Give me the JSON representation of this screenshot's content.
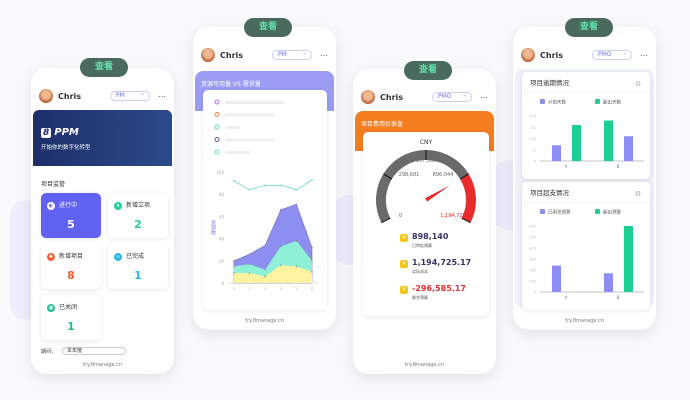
{
  "view_label": "查看",
  "footer": "try.8manage.cn",
  "user": "Chris",
  "colors": {
    "purple": "#6b6ef0",
    "green": "#1ecf95",
    "orange": "#f47d20",
    "red": "#e52b2b",
    "pill": "#4a6a5e"
  },
  "phone1": {
    "role": "PM",
    "brand": "PPM",
    "brand_logo": "8",
    "slogan": "开始你的数字化转型",
    "section": "项目监管",
    "stats": [
      {
        "label": "进行中",
        "value": "5",
        "color": "#6060f0"
      },
      {
        "label": "新增立项",
        "value": "2",
        "color": "#1ecf95"
      },
      {
        "label": "新增项目",
        "value": "8",
        "color": "#f06030"
      },
      {
        "label": "已完成",
        "value": "1",
        "color": "#2bb6ee"
      },
      {
        "label": "已关闭",
        "value": "1",
        "color": "#1ec090"
      }
    ],
    "period_label": "期间：",
    "period_value": "本年度"
  },
  "phone2": {
    "role": "PM",
    "title": "资源可用量 VS 需求量",
    "chart_data": {
      "type": "area",
      "ylabel": "资源数",
      "ylim": [
        0,
        100
      ],
      "yticks": [
        0,
        20,
        40,
        60,
        80,
        100
      ],
      "x": [
        "1",
        "2",
        "3",
        "4",
        "5",
        "6"
      ],
      "series": [
        {
          "values": [
            9,
            9,
            6,
            16,
            15,
            10
          ],
          "color": "#fff3a0"
        },
        {
          "values": [
            15,
            17,
            12,
            33,
            38,
            20
          ],
          "color": "#8ff0d8"
        },
        {
          "values": [
            20,
            26,
            34,
            66,
            71,
            32
          ],
          "color": "#8c8ef0"
        },
        {
          "values": [
            92,
            84,
            88,
            88,
            84,
            93
          ],
          "color": "#7ee0c8",
          "kind": "line"
        }
      ]
    }
  },
  "phone3": {
    "role": "PMO",
    "title": "项目费用仪表盘",
    "gauge": {
      "unit": "CNY",
      "min": "0",
      "max": "1,194,725",
      "ticks": [
        "298,681",
        "597,363",
        "896,044"
      ],
      "value_fraction": 0.75
    },
    "metrics": [
      {
        "value": "898,140",
        "label": "已审批预算",
        "color": "#333366"
      },
      {
        "value": "1,194,725.17",
        "label": "实际成本",
        "color": "#333366"
      },
      {
        "value": "-296,585.17",
        "label": "剩余预算",
        "color": "#e53030"
      }
    ]
  },
  "phone4": {
    "role": "PMO",
    "chart_data": [
      {
        "type": "bar",
        "title": "项目逾期情况",
        "legend": [
          "计划天数",
          "超出天数"
        ],
        "ylim": [
          0,
          200
        ],
        "yticks": [
          0,
          50,
          100,
          150,
          200
        ],
        "categories": [
          "A",
          "B"
        ],
        "series": [
          {
            "name": "计划天数",
            "values": [
              70,
              110
            ]
          },
          {
            "name": "超出天数",
            "values": [
              160,
              180
            ]
          }
        ]
      },
      {
        "type": "bar",
        "title": "项目超支情况",
        "legend": [
          "已用总预算",
          "超出预算"
        ],
        "ylim": [
          0,
          600
        ],
        "yticks": [
          0,
          100,
          200,
          300,
          400,
          500,
          600
        ],
        "categories": [
          "A",
          "B"
        ],
        "series": [
          {
            "name": "已用总预算",
            "values": [
              240,
              170
            ]
          },
          {
            "name": "超出预算",
            "values": [
              0,
              600
            ]
          }
        ]
      }
    ]
  }
}
